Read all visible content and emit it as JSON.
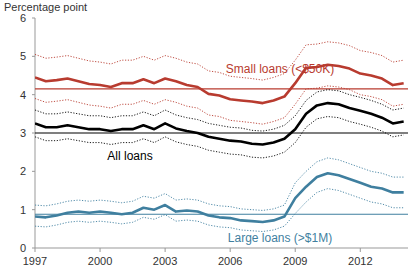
{
  "chart_data": {
    "type": "line",
    "y_label": "Percentage point",
    "x": [
      1997,
      1997.5,
      1998,
      1998.5,
      1999,
      1999.5,
      2000,
      2000.5,
      2001,
      2001.5,
      2002,
      2002.5,
      2003,
      2003.5,
      2004,
      2004.5,
      2005,
      2005.5,
      2006,
      2006.5,
      2007,
      2007.5,
      2008,
      2008.5,
      2009,
      2009.5,
      2010,
      2010.5,
      2011,
      2011.5,
      2012,
      2012.5,
      2013,
      2013.5,
      2014
    ],
    "xlim": [
      1997,
      2014.2
    ],
    "xticks": [
      1997,
      2000,
      2003,
      2006,
      2009,
      2012
    ],
    "ylim": [
      0,
      6
    ],
    "yticks": [
      0,
      1,
      2,
      3,
      4,
      5,
      6
    ],
    "grid": false,
    "series": [
      {
        "name": "Small loans (<$50K)",
        "color": "#b83b2f",
        "line_style": "solid",
        "values": [
          4.45,
          4.35,
          4.38,
          4.42,
          4.35,
          4.28,
          4.25,
          4.2,
          4.3,
          4.3,
          4.4,
          4.3,
          4.42,
          4.35,
          4.25,
          4.2,
          4.02,
          3.98,
          3.88,
          3.85,
          3.82,
          3.78,
          3.85,
          3.95,
          4.3,
          4.7,
          4.72,
          4.78,
          4.75,
          4.68,
          4.55,
          4.5,
          4.42,
          4.25,
          4.3
        ]
      },
      {
        "color": "#b83b2f",
        "line_style": "dotted",
        "values": [
          5.05,
          4.95,
          4.98,
          5.02,
          4.95,
          4.88,
          4.85,
          4.8,
          4.9,
          4.9,
          5.0,
          4.9,
          5.02,
          4.95,
          4.85,
          4.8,
          4.62,
          4.58,
          4.48,
          4.45,
          4.42,
          4.38,
          4.45,
          4.55,
          4.9,
          5.3,
          5.32,
          5.38,
          5.35,
          5.28,
          5.15,
          5.1,
          5.02,
          4.85,
          4.9
        ]
      },
      {
        "color": "#b83b2f",
        "line_style": "dotted",
        "values": [
          3.9,
          3.8,
          3.83,
          3.87,
          3.8,
          3.73,
          3.7,
          3.65,
          3.75,
          3.75,
          3.85,
          3.75,
          3.87,
          3.8,
          3.7,
          3.65,
          3.47,
          3.43,
          3.33,
          3.3,
          3.27,
          3.23,
          3.3,
          3.4,
          3.75,
          4.15,
          4.17,
          4.23,
          4.2,
          4.13,
          4.0,
          3.95,
          3.87,
          3.7,
          3.75
        ]
      },
      {
        "name": "All loans",
        "color": "#000000",
        "line_style": "solid",
        "values": [
          3.25,
          3.15,
          3.15,
          3.2,
          3.15,
          3.1,
          3.1,
          3.05,
          3.1,
          3.1,
          3.2,
          3.1,
          3.25,
          3.12,
          3.05,
          3.0,
          2.9,
          2.85,
          2.8,
          2.78,
          2.72,
          2.7,
          2.75,
          2.85,
          3.1,
          3.5,
          3.72,
          3.78,
          3.75,
          3.65,
          3.58,
          3.5,
          3.4,
          3.25,
          3.3
        ]
      },
      {
        "color": "#000000",
        "line_style": "dotted",
        "values": [
          3.6,
          3.5,
          3.5,
          3.55,
          3.5,
          3.45,
          3.45,
          3.4,
          3.45,
          3.45,
          3.55,
          3.45,
          3.6,
          3.47,
          3.4,
          3.35,
          3.25,
          3.2,
          3.15,
          3.13,
          3.07,
          3.05,
          3.1,
          3.2,
          3.45,
          3.85,
          4.07,
          4.13,
          4.1,
          4.0,
          3.93,
          3.85,
          3.75,
          3.6,
          3.65
        ]
      },
      {
        "color": "#000000",
        "line_style": "dotted",
        "values": [
          2.9,
          2.8,
          2.8,
          2.85,
          2.8,
          2.75,
          2.75,
          2.7,
          2.75,
          2.75,
          2.85,
          2.75,
          2.9,
          2.77,
          2.7,
          2.65,
          2.55,
          2.5,
          2.45,
          2.43,
          2.37,
          2.35,
          2.4,
          2.5,
          2.75,
          3.15,
          3.37,
          3.43,
          3.4,
          3.3,
          3.23,
          3.15,
          3.05,
          2.9,
          2.95
        ]
      },
      {
        "name": "Large loans (>$1M)",
        "color": "#3f7f9f",
        "line_style": "solid",
        "values": [
          0.82,
          0.8,
          0.85,
          0.92,
          0.95,
          0.92,
          0.95,
          0.92,
          0.88,
          0.92,
          1.05,
          1.0,
          1.12,
          0.95,
          0.98,
          0.95,
          0.85,
          0.8,
          0.78,
          0.72,
          0.7,
          0.68,
          0.72,
          0.82,
          1.3,
          1.6,
          1.85,
          1.95,
          1.9,
          1.8,
          1.7,
          1.6,
          1.55,
          1.45,
          1.45
        ]
      },
      {
        "color": "#3f7f9f",
        "line_style": "dotted",
        "values": [
          1.12,
          1.1,
          1.15,
          1.22,
          1.25,
          1.22,
          1.25,
          1.22,
          1.18,
          1.22,
          1.35,
          1.3,
          1.42,
          1.25,
          1.28,
          1.25,
          1.15,
          1.1,
          1.08,
          1.02,
          1.0,
          0.98,
          1.02,
          1.12,
          1.7,
          2.0,
          2.25,
          2.35,
          2.3,
          2.2,
          2.1,
          2.0,
          1.95,
          1.85,
          1.85
        ]
      },
      {
        "color": "#3f7f9f",
        "line_style": "dotted",
        "values": [
          0.57,
          0.55,
          0.6,
          0.67,
          0.7,
          0.67,
          0.7,
          0.67,
          0.63,
          0.67,
          0.8,
          0.75,
          0.87,
          0.7,
          0.73,
          0.7,
          0.6,
          0.55,
          0.53,
          0.47,
          0.45,
          0.43,
          0.47,
          0.57,
          0.9,
          1.2,
          1.45,
          1.55,
          1.5,
          1.4,
          1.3,
          1.2,
          1.15,
          1.05,
          1.05
        ]
      }
    ],
    "hlines": [
      {
        "value": 4.15,
        "color": "#b83b2f"
      },
      {
        "value": 3.0,
        "color": "#000000"
      },
      {
        "value": 0.88,
        "color": "#3f7f9f"
      }
    ]
  }
}
